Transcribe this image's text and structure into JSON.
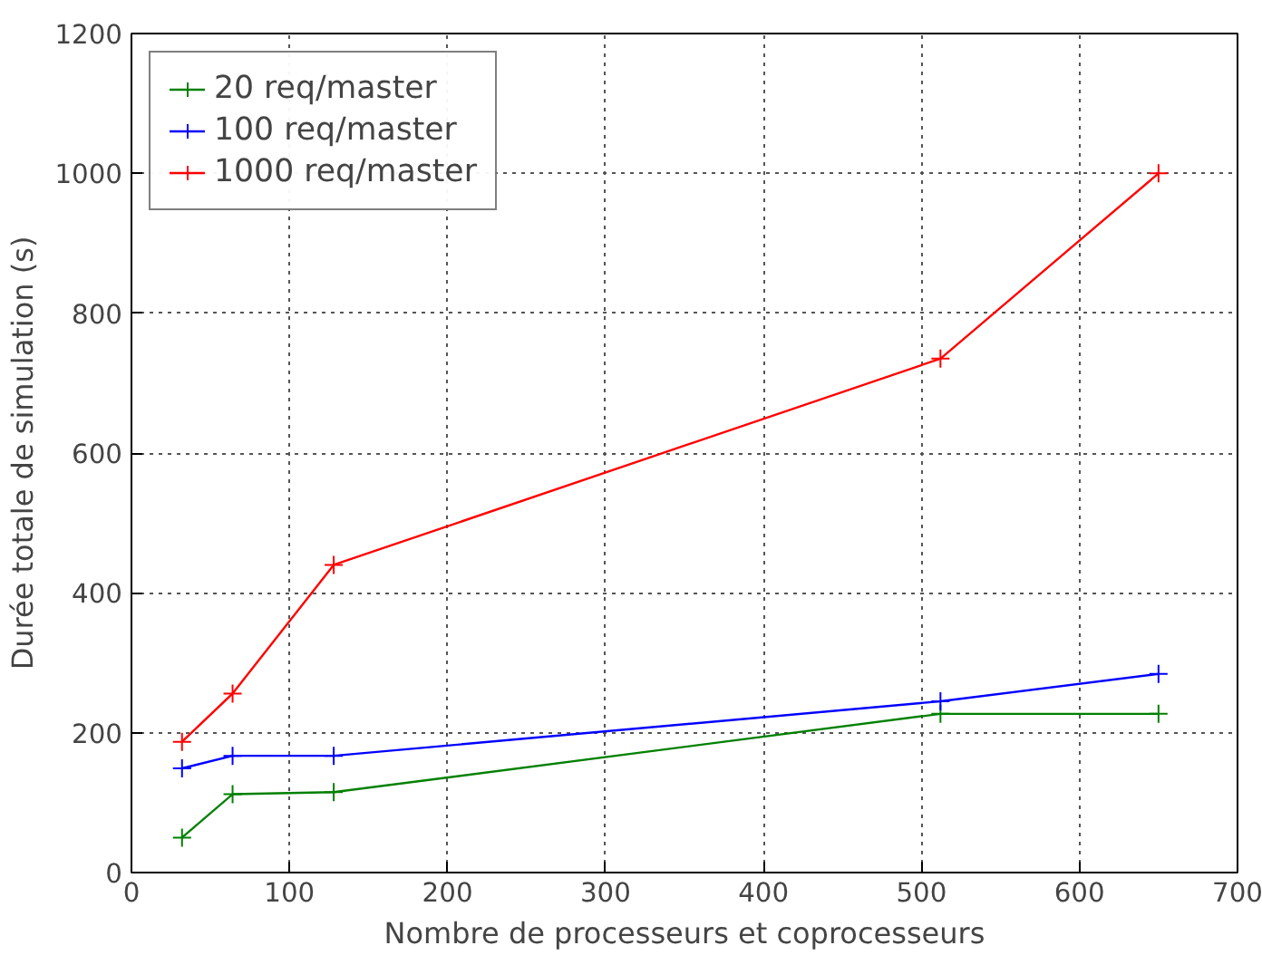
{
  "chart_data": {
    "type": "line",
    "xlabel": "Nombre de processeurs et coprocesseurs",
    "ylabel": "Durée totale de simulation (s)",
    "x": [
      32,
      64,
      128,
      512,
      650
    ],
    "series": [
      {
        "name": "20 req/master",
        "color": "#008000",
        "values": [
          50,
          112,
          115,
          227,
          227
        ]
      },
      {
        "name": "100 req/master",
        "color": "#0000ff",
        "values": [
          149,
          167,
          167,
          245,
          284
        ]
      },
      {
        "name": "1000 req/master",
        "color": "#ff0000",
        "values": [
          187,
          256,
          440,
          735,
          1000
        ]
      }
    ],
    "xlim": [
      0,
      700
    ],
    "ylim": [
      0,
      1200
    ],
    "xticks": [
      0,
      100,
      200,
      300,
      400,
      500,
      600,
      700
    ],
    "yticks": [
      0,
      200,
      400,
      600,
      800,
      1000,
      1200
    ],
    "grid": true,
    "legend": "top left",
    "marker": "cross",
    "line_style": "solid"
  }
}
